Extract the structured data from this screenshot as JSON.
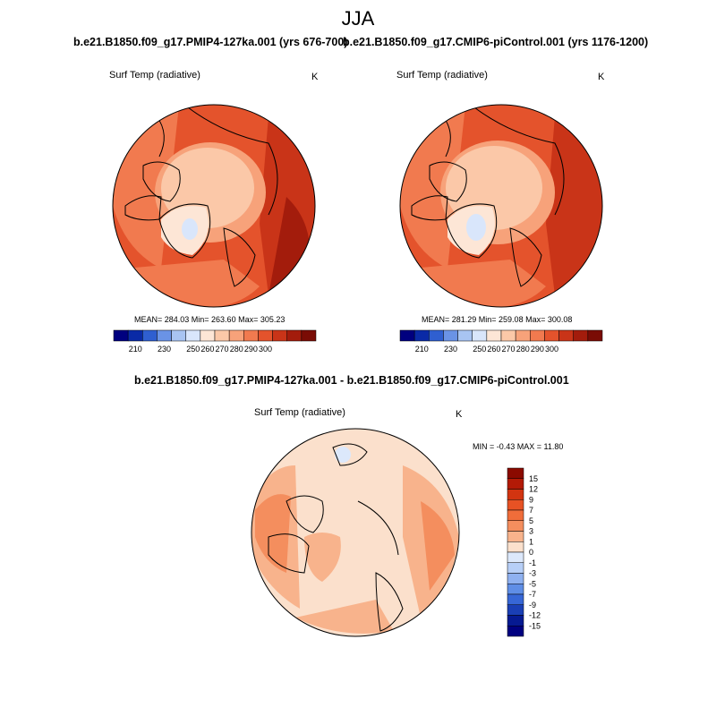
{
  "figure": {
    "season": "JJA",
    "units": "K"
  },
  "panels": [
    {
      "id": "left",
      "case": "b.e21.B1850.f09_g17.PMIP4-127ka.001 (yrs 676-700)",
      "variable": "Surf Temp (radiative)",
      "units": "K",
      "stats": "MEAN= 284.03  Min= 263.60  Max= 305.23"
    },
    {
      "id": "right",
      "case": "b.e21.B1850.f09_g17.CMIP6-piControl.001 (yrs 1176-1200)",
      "variable": "Surf Temp (radiative)",
      "units": "K",
      "stats": "MEAN= 281.29  Min= 259.08  Max= 300.08"
    }
  ],
  "difference": {
    "title": "b.e21.B1850.f09_g17.PMIP4-127ka.001 - b.e21.B1850.f09_g17.CMIP6-piControl.001",
    "variable": "Surf Temp (radiative)",
    "units": "K",
    "stats": "MIN =  -0.43 MAX =  11.80"
  },
  "colorbar_abs": {
    "labels": [
      "210",
      "230",
      "250",
      "260",
      "270",
      "280",
      "290",
      "300"
    ],
    "colors": [
      "#00007f",
      "#0a2aa6",
      "#2f5fd0",
      "#6a93e6",
      "#a8c4f2",
      "#d9e6fb",
      "#fde6d6",
      "#fbc8a8",
      "#f7a27a",
      "#f17a4f",
      "#e4532c",
      "#c93418",
      "#a31c0c",
      "#7a0c05"
    ]
  },
  "colorbar_diff": {
    "labels": [
      "15",
      "12",
      "9",
      "7",
      "5",
      "3",
      "1",
      "0",
      "-1",
      "-3",
      "-5",
      "-7",
      "-9",
      "-12",
      "-15"
    ],
    "colors": [
      "#8b0a00",
      "#b31a06",
      "#d23410",
      "#e75224",
      "#f06d3a",
      "#f48e5e",
      "#f8b38c",
      "#fbe0cc",
      "#dce8fb",
      "#b7cff7",
      "#8fb1f0",
      "#5f8ee6",
      "#3767d6",
      "#1a3fb5",
      "#061a92",
      "#000080"
    ]
  },
  "chart_data": {
    "type": "heatmap",
    "title": "JJA",
    "maps": [
      {
        "name": "PMIP4-127ka",
        "variable": "Surf Temp (radiative)",
        "units": "K",
        "mean": 284.03,
        "min": 263.6,
        "max": 305.23
      },
      {
        "name": "CMIP6-piControl",
        "variable": "Surf Temp (radiative)",
        "units": "K",
        "mean": 281.29,
        "min": 259.08,
        "max": 300.08
      },
      {
        "name": "PMIP4-127ka - CMIP6-piControl",
        "variable": "Surf Temp (radiative)",
        "units": "K",
        "min": -0.43,
        "max": 11.8
      }
    ],
    "levels_abs": [
      210,
      230,
      250,
      260,
      270,
      280,
      290,
      300
    ],
    "levels_diff": [
      -15,
      -12,
      -9,
      -7,
      -5,
      -3,
      -1,
      0,
      1,
      3,
      5,
      7,
      9,
      12,
      15
    ]
  }
}
